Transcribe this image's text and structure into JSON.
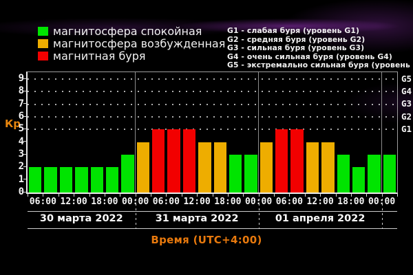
{
  "legend": {
    "items": [
      {
        "label": "магнитосфера спокойная",
        "status": "quiet"
      },
      {
        "label": "магнитосфера возбужденная",
        "status": "active"
      },
      {
        "label": "магнитная буря",
        "status": "storm"
      }
    ]
  },
  "storm_levels": {
    "lines": [
      "G1 - слабая буря (уровень G1)",
      "G2 - средняя буря (уровень G2)",
      "G3 - сильная буря (уровень G3)",
      "G4 - очень сильная буря (уровень G4)",
      "G5 - экстремально сильная буря (уровень G5)"
    ]
  },
  "chart_data": {
    "type": "bar",
    "title": "",
    "ylabel": "Кр",
    "xlabel": "Время (UTC+4:00)",
    "ylim": [
      0,
      9
    ],
    "y_ticks": [
      0,
      1,
      2,
      3,
      4,
      5,
      6,
      7,
      8,
      9
    ],
    "grid": "dotted horizontal lines at G-storm levels only",
    "grid_levels_kp": [
      5,
      6,
      7,
      8,
      9
    ],
    "right_axis_labels": [
      {
        "label": "G1",
        "kp": 5
      },
      {
        "label": "G2",
        "kp": 6
      },
      {
        "label": "G3",
        "kp": 7
      },
      {
        "label": "G4",
        "kp": 8
      },
      {
        "label": "G5",
        "kp": 9
      }
    ],
    "hours_total": 72,
    "bar_interval_hours": 3,
    "bars": [
      {
        "kp": 2,
        "status": "quiet"
      },
      {
        "kp": 2,
        "status": "quiet"
      },
      {
        "kp": 2,
        "status": "quiet"
      },
      {
        "kp": 2,
        "status": "quiet"
      },
      {
        "kp": 2,
        "status": "quiet"
      },
      {
        "kp": 2,
        "status": "quiet"
      },
      {
        "kp": 3,
        "status": "quiet"
      },
      {
        "kp": 4,
        "status": "active"
      },
      {
        "kp": 5,
        "status": "storm"
      },
      {
        "kp": 5,
        "status": "storm"
      },
      {
        "kp": 5,
        "status": "storm"
      },
      {
        "kp": 4,
        "status": "active"
      },
      {
        "kp": 4,
        "status": "active"
      },
      {
        "kp": 3,
        "status": "quiet"
      },
      {
        "kp": 3,
        "status": "quiet"
      },
      {
        "kp": 4,
        "status": "active"
      },
      {
        "kp": 5,
        "status": "storm"
      },
      {
        "kp": 5,
        "status": "storm"
      },
      {
        "kp": 4,
        "status": "active"
      },
      {
        "kp": 4,
        "status": "active"
      },
      {
        "kp": 3,
        "status": "quiet"
      },
      {
        "kp": 2,
        "status": "quiet"
      },
      {
        "kp": 3,
        "status": "quiet"
      },
      {
        "kp": 3,
        "status": "quiet"
      }
    ],
    "x_tick_labels": [
      {
        "label": "06:00",
        "hour": 3
      },
      {
        "label": "12:00",
        "hour": 9
      },
      {
        "label": "18:00",
        "hour": 15
      },
      {
        "label": "00:00",
        "hour": 21
      },
      {
        "label": "06:00",
        "hour": 27
      },
      {
        "label": "12:00",
        "hour": 33
      },
      {
        "label": "18:00",
        "hour": 39
      },
      {
        "label": "00:00",
        "hour": 45
      },
      {
        "label": "06:00",
        "hour": 51
      },
      {
        "label": "12:00",
        "hour": 57
      },
      {
        "label": "18:00",
        "hour": 63
      },
      {
        "label": "00:00",
        "hour": 69
      }
    ],
    "day_divider_hours": [
      21,
      45,
      69
    ],
    "dates": [
      {
        "label": "30 марта 2022",
        "start_hour": 0,
        "end_hour": 21
      },
      {
        "label": "31 марта 2022",
        "start_hour": 21,
        "end_hour": 45
      },
      {
        "label": "01 апреля 2022",
        "start_hour": 45,
        "end_hour": 69
      }
    ],
    "status_colors": {
      "quiet": "#00e400",
      "active": "#eead00",
      "storm": "#f20000"
    },
    "legend_position": "top-left"
  }
}
